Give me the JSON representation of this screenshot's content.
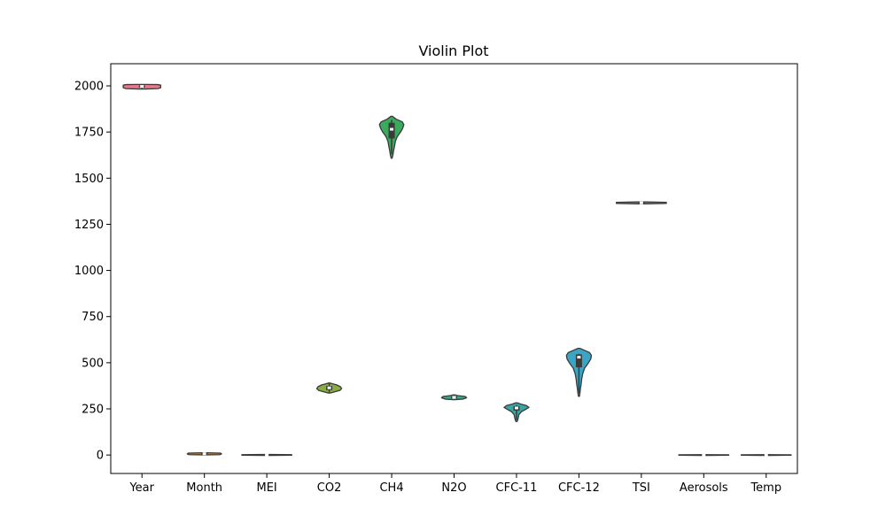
{
  "chart_data": {
    "type": "violin",
    "title": "Violin Plot",
    "xlabel": "",
    "ylabel": "",
    "ylim": [
      -100,
      2120
    ],
    "yticks": [
      0,
      250,
      500,
      750,
      1000,
      1250,
      1500,
      1750,
      2000
    ],
    "legend": "none",
    "categories": [
      "Year",
      "Month",
      "MEI",
      "CO2",
      "CH4",
      "N2O",
      "CFC-11",
      "CFC-12",
      "TSI",
      "Aerosols",
      "Temp"
    ],
    "series": [
      {
        "category": "Year",
        "color": "#e8798b",
        "min": 1983,
        "q1": 1991,
        "median": 1997,
        "q3": 2003,
        "max": 2008,
        "max_halfwidth": 0.6,
        "profile": [
          [
            1983,
            0.2
          ],
          [
            1985,
            0.85
          ],
          [
            1990,
            1
          ],
          [
            1997,
            1
          ],
          [
            2004,
            1
          ],
          [
            2007,
            0.85
          ],
          [
            2008,
            0.2
          ]
        ]
      },
      {
        "category": "Month",
        "color": "#c88a43",
        "min": 1,
        "q1": 4,
        "median": 7,
        "q3": 10,
        "max": 12,
        "max_halfwidth": 0.55,
        "profile": [
          [
            1,
            0.2
          ],
          [
            2,
            0.9
          ],
          [
            6,
            1
          ],
          [
            10,
            0.95
          ],
          [
            12,
            0.2
          ]
        ]
      },
      {
        "category": "MEI",
        "color": "#a3a43c",
        "min": -2,
        "q1": -0.4,
        "median": 0.2,
        "q3": 0.8,
        "max": 3,
        "max_halfwidth": 0.8,
        "profile": [
          [
            -2,
            0.2
          ],
          [
            -1,
            1
          ],
          [
            0,
            1
          ],
          [
            1.5,
            1
          ],
          [
            3,
            0.2
          ]
        ]
      },
      {
        "category": "CO2",
        "color": "#88ad40",
        "min": 340,
        "q1": 352,
        "median": 364,
        "q3": 374,
        "max": 388,
        "max_halfwidth": 0.4,
        "profile": [
          [
            336,
            0.08
          ],
          [
            342,
            0.4
          ],
          [
            350,
            0.85
          ],
          [
            360,
            1
          ],
          [
            370,
            0.9
          ],
          [
            380,
            0.6
          ],
          [
            386,
            0.25
          ],
          [
            390,
            0.05
          ]
        ]
      },
      {
        "category": "CH4",
        "color": "#3aaa5d",
        "min": 1630,
        "q1": 1715,
        "median": 1765,
        "q3": 1800,
        "max": 1815,
        "max_halfwidth": 0.4,
        "profile": [
          [
            1608,
            0.04
          ],
          [
            1625,
            0.1
          ],
          [
            1650,
            0.16
          ],
          [
            1670,
            0.22
          ],
          [
            1700,
            0.3
          ],
          [
            1725,
            0.45
          ],
          [
            1750,
            0.72
          ],
          [
            1770,
            0.88
          ],
          [
            1790,
            0.98
          ],
          [
            1805,
            0.85
          ],
          [
            1820,
            0.35
          ],
          [
            1835,
            0.06
          ]
        ]
      },
      {
        "category": "N2O",
        "color": "#3aa88b",
        "min": 302,
        "q1": 306,
        "median": 312,
        "q3": 318,
        "max": 322,
        "max_halfwidth": 0.4,
        "profile": [
          [
            300,
            0.1
          ],
          [
            303,
            0.7
          ],
          [
            310,
            1
          ],
          [
            317,
            0.9
          ],
          [
            322,
            0.3
          ],
          [
            326,
            0.05
          ]
        ]
      },
      {
        "category": "CFC-11",
        "color": "#38a6a3",
        "min": 190,
        "q1": 240,
        "median": 255,
        "q3": 265,
        "max": 271,
        "max_halfwidth": 0.4,
        "profile": [
          [
            182,
            0.05
          ],
          [
            190,
            0.1
          ],
          [
            205,
            0.15
          ],
          [
            220,
            0.2
          ],
          [
            235,
            0.4
          ],
          [
            248,
            0.75
          ],
          [
            258,
            1
          ],
          [
            268,
            0.8
          ],
          [
            276,
            0.35
          ],
          [
            283,
            0.05
          ]
        ]
      },
      {
        "category": "CFC-12",
        "color": "#3aa5c5",
        "min": 335,
        "q1": 475,
        "median": 530,
        "q3": 545,
        "max": 548,
        "max_halfwidth": 0.4,
        "profile": [
          [
            318,
            0.04
          ],
          [
            335,
            0.08
          ],
          [
            360,
            0.12
          ],
          [
            385,
            0.18
          ],
          [
            410,
            0.22
          ],
          [
            440,
            0.3
          ],
          [
            470,
            0.45
          ],
          [
            495,
            0.72
          ],
          [
            520,
            0.95
          ],
          [
            540,
            1
          ],
          [
            555,
            0.85
          ],
          [
            568,
            0.42
          ],
          [
            578,
            0.08
          ]
        ]
      },
      {
        "category": "TSI",
        "color": "#6f90d6",
        "min": 1365.5,
        "q1": 1365.8,
        "median": 1366.1,
        "q3": 1366.3,
        "max": 1366.9,
        "max_halfwidth": 0.8,
        "profile": [
          [
            1361,
            0.2
          ],
          [
            1363,
            1
          ],
          [
            1366,
            1
          ],
          [
            1369,
            1
          ],
          [
            1371,
            0.2
          ]
        ]
      },
      {
        "category": "Aerosols",
        "color": "#b594dd",
        "min": 0.0016,
        "q1": 0.0028,
        "median": 0.0058,
        "q3": 0.0126,
        "max": 0.1494,
        "max_halfwidth": 0.8,
        "profile": [
          [
            -2,
            0.2
          ],
          [
            -1,
            1
          ],
          [
            0,
            1
          ],
          [
            1,
            1
          ],
          [
            2,
            0.2
          ]
        ]
      },
      {
        "category": "Temp",
        "color": "#e47bc4",
        "min": -0.28,
        "q1": 0.12,
        "median": 0.25,
        "q3": 0.4,
        "max": 0.74,
        "max_halfwidth": 0.8,
        "profile": [
          [
            -2,
            0.2
          ],
          [
            -1,
            1
          ],
          [
            0,
            1
          ],
          [
            1,
            1
          ],
          [
            2,
            0.2
          ]
        ]
      }
    ]
  }
}
